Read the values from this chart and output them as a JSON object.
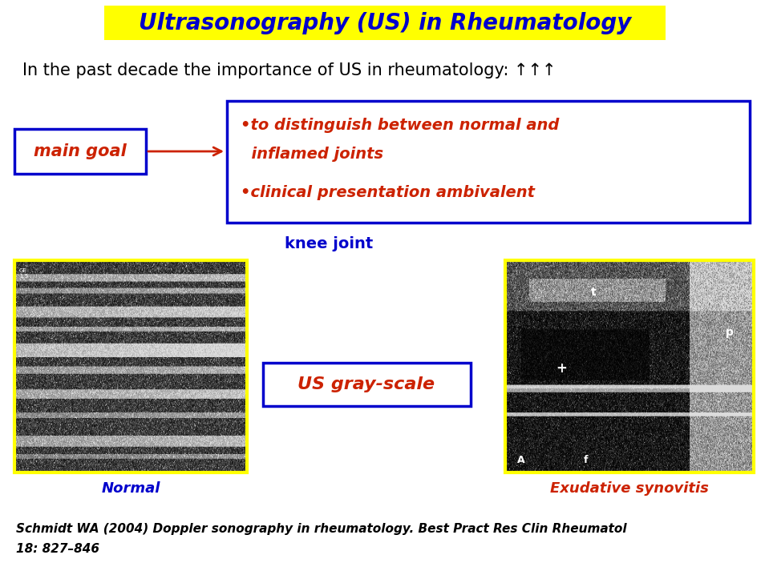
{
  "background_color": "#ffffff",
  "title": "Ultrasonography (US) in Rheumatology",
  "title_bg": "#ffff00",
  "title_color": "#0000cc",
  "title_fontsize": 20,
  "subtitle": "In the past decade the importance of US in rheumatology: ↑↑↑",
  "subtitle_fontsize": 15,
  "subtitle_color": "#000000",
  "main_goal_text": "main goal",
  "main_goal_color": "#cc2200",
  "main_goal_box_edge": "#0000cc",
  "bullet_text_line1": "•to distinguish between normal and",
  "bullet_text_line2": "  inflamed joints",
  "bullet_text_line3": "•clinical presentation ambivalent",
  "bullet_color": "#cc2200",
  "bullet_box_edge": "#0000cc",
  "knee_joint_text": "knee joint",
  "knee_joint_color": "#0000cc",
  "knee_joint_fontsize": 14,
  "us_grayscale_text": "US gray-scale",
  "us_grayscale_color": "#cc2200",
  "us_grayscale_box_edge": "#0000cc",
  "normal_label": "Normal",
  "normal_label_color": "#0000cc",
  "exudative_label": "Exudative synovitis",
  "exudative_label_color": "#cc2200",
  "citation_line1": "Schmidt WA (2004) Doppler sonography in rheumatology. Best Pract Res Clin Rheumatol",
  "citation_line2": "18: 827–846",
  "citation_color": "#000000",
  "citation_fontsize": 11,
  "left_img_border": "#ffff00",
  "right_img_border": "#ffff00",
  "arrow_color": "#cc2200"
}
